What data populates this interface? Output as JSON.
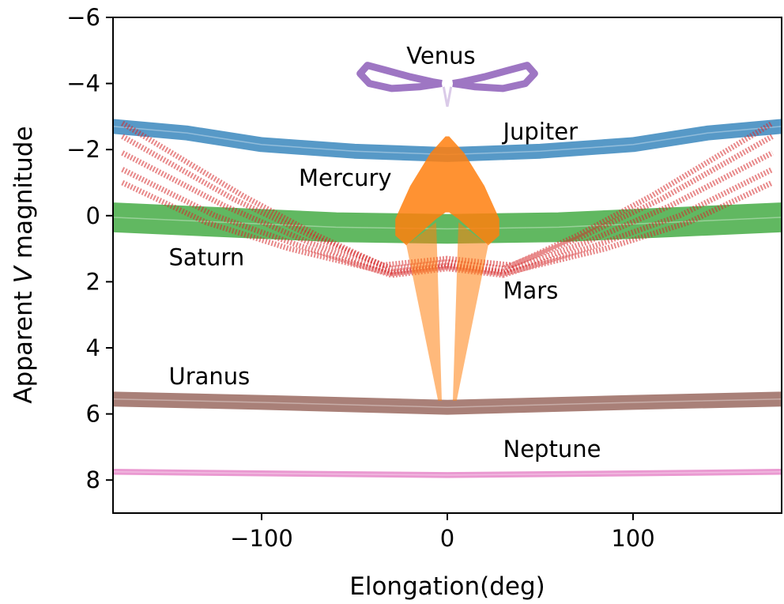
{
  "chart_data": {
    "type": "scatter",
    "xlabel": "Elongation(deg)",
    "ylabel_parts": [
      "Apparent ",
      "V",
      " magnitude"
    ],
    "xlim": [
      -180,
      180
    ],
    "ylim": [
      -6,
      9
    ],
    "y_inverted": true,
    "x_ticks": [
      {
        "value": -100,
        "label": "−100"
      },
      {
        "value": 0,
        "label": "0"
      },
      {
        "value": 100,
        "label": "100"
      }
    ],
    "y_ticks": [
      {
        "value": -6,
        "label": "−6"
      },
      {
        "value": -4,
        "label": "−4"
      },
      {
        "value": -2,
        "label": "−2"
      },
      {
        "value": 0,
        "label": "0"
      },
      {
        "value": 2,
        "label": "2"
      },
      {
        "value": 4,
        "label": "4"
      },
      {
        "value": 6,
        "label": "6"
      },
      {
        "value": 8,
        "label": "8"
      }
    ],
    "grid": false,
    "series": [
      {
        "name": "Jupiter",
        "color": "#1f77b4",
        "label_at": [
          30,
          -2.3
        ],
        "kind": "band",
        "center": [
          [
            -180,
            -2.7
          ],
          [
            -140,
            -2.5
          ],
          [
            -100,
            -2.15
          ],
          [
            -50,
            -1.95
          ],
          [
            0,
            -1.85
          ],
          [
            50,
            -1.95
          ],
          [
            100,
            -2.15
          ],
          [
            140,
            -2.5
          ],
          [
            180,
            -2.7
          ]
        ],
        "width": 0.45
      },
      {
        "name": "Saturn",
        "color": "#2ca02c",
        "label_at": [
          -150,
          1.5
        ],
        "kind": "band",
        "center": [
          [
            -180,
            0.05
          ],
          [
            -120,
            0.2
          ],
          [
            -60,
            0.35
          ],
          [
            0,
            0.4
          ],
          [
            60,
            0.35
          ],
          [
            120,
            0.2
          ],
          [
            180,
            0.05
          ]
        ],
        "width": 0.9
      },
      {
        "name": "Uranus",
        "color": "#8c564b",
        "label_at": [
          -150,
          5.1
        ],
        "kind": "band",
        "center": [
          [
            -180,
            5.55
          ],
          [
            -100,
            5.65
          ],
          [
            0,
            5.8
          ],
          [
            100,
            5.65
          ],
          [
            180,
            5.55
          ]
        ],
        "width": 0.45
      },
      {
        "name": "Neptune",
        "color": "#e377c2",
        "label_at": [
          30,
          7.3
        ],
        "kind": "band",
        "center": [
          [
            -180,
            7.75
          ],
          [
            -100,
            7.8
          ],
          [
            0,
            7.85
          ],
          [
            100,
            7.8
          ],
          [
            180,
            7.75
          ]
        ],
        "width": 0.18
      },
      {
        "name": "Mars",
        "color": "#d62728",
        "label_at": [
          30,
          2.5
        ],
        "kind": "fan",
        "lines": [
          [
            [
              -175,
              -2.8
            ],
            [
              -110,
              -0.6
            ],
            [
              -70,
              0.6
            ],
            [
              -35,
              1.5
            ],
            [
              0,
              1.3
            ],
            [
              35,
              1.5
            ],
            [
              70,
              0.6
            ],
            [
              110,
              -0.6
            ],
            [
              175,
              -2.8
            ]
          ],
          [
            [
              -175,
              -2.4
            ],
            [
              -115,
              -0.5
            ],
            [
              -70,
              0.7
            ],
            [
              -30,
              1.6
            ],
            [
              0,
              1.4
            ],
            [
              30,
              1.6
            ],
            [
              70,
              0.7
            ],
            [
              115,
              -0.5
            ],
            [
              175,
              -2.4
            ]
          ],
          [
            [
              -175,
              -1.9
            ],
            [
              -120,
              -0.3
            ],
            [
              -75,
              0.8
            ],
            [
              -30,
              1.7
            ],
            [
              0,
              1.5
            ],
            [
              30,
              1.7
            ],
            [
              75,
              0.8
            ],
            [
              120,
              -0.3
            ],
            [
              175,
              -1.9
            ]
          ],
          [
            [
              -175,
              -1.4
            ],
            [
              -125,
              0.0
            ],
            [
              -80,
              0.9
            ],
            [
              -30,
              1.8
            ],
            [
              0,
              1.6
            ],
            [
              30,
              1.8
            ],
            [
              80,
              0.9
            ],
            [
              125,
              0.0
            ],
            [
              175,
              -1.4
            ]
          ],
          [
            [
              -175,
              -1.0
            ],
            [
              -130,
              0.2
            ],
            [
              -85,
              1.0
            ],
            [
              -30,
              1.75
            ],
            [
              0,
              1.55
            ],
            [
              30,
              1.75
            ],
            [
              85,
              1.0
            ],
            [
              130,
              0.2
            ],
            [
              175,
              -1.0
            ]
          ]
        ],
        "width": 0.12
      },
      {
        "name": "Mercury",
        "color": "#ff7f0e",
        "label_at": [
          -80,
          -0.9
        ],
        "kind": "polygon",
        "solid": [
          [
            -28,
            0.1
          ],
          [
            -20,
            -0.9
          ],
          [
            -9,
            -1.9
          ],
          [
            -1,
            -2.4
          ],
          [
            1,
            -2.4
          ],
          [
            9,
            -1.9
          ],
          [
            20,
            -0.9
          ],
          [
            28,
            0.1
          ],
          [
            28,
            0.6
          ],
          [
            22,
            0.9
          ],
          [
            6,
            0.1
          ],
          [
            1,
            -0.1
          ],
          [
            -1,
            -0.1
          ],
          [
            -6,
            0.1
          ],
          [
            -22,
            0.9
          ],
          [
            -28,
            0.6
          ]
        ],
        "fan_left": [
          [
            -22,
            0.9
          ],
          [
            -6,
            0.2
          ],
          [
            -3,
            5.6
          ],
          [
            -5,
            5.6
          ]
        ],
        "fan_right": [
          [
            22,
            0.9
          ],
          [
            6,
            0.2
          ],
          [
            3,
            5.6
          ],
          [
            5,
            5.6
          ]
        ]
      },
      {
        "name": "Venus",
        "color": "#9467bd",
        "label_at": [
          -22,
          -4.6
        ],
        "kind": "loops",
        "loop_left": [
          [
            -3,
            -4.0
          ],
          [
            -15,
            -3.9
          ],
          [
            -30,
            -3.85
          ],
          [
            -42,
            -4.0
          ],
          [
            -47,
            -4.3
          ],
          [
            -43,
            -4.55
          ],
          [
            -33,
            -4.4
          ],
          [
            -20,
            -4.2
          ],
          [
            -8,
            -4.05
          ],
          [
            -3,
            -4.0
          ]
        ],
        "loop_right": [
          [
            3,
            -4.0
          ],
          [
            15,
            -3.9
          ],
          [
            30,
            -3.85
          ],
          [
            42,
            -4.0
          ],
          [
            47,
            -4.3
          ],
          [
            43,
            -4.55
          ],
          [
            33,
            -4.4
          ],
          [
            20,
            -4.2
          ],
          [
            8,
            -4.05
          ],
          [
            3,
            -4.0
          ]
        ],
        "stem": [
          [
            -2,
            -3.9
          ],
          [
            0,
            -3.3
          ],
          [
            2,
            -3.9
          ]
        ]
      }
    ]
  }
}
